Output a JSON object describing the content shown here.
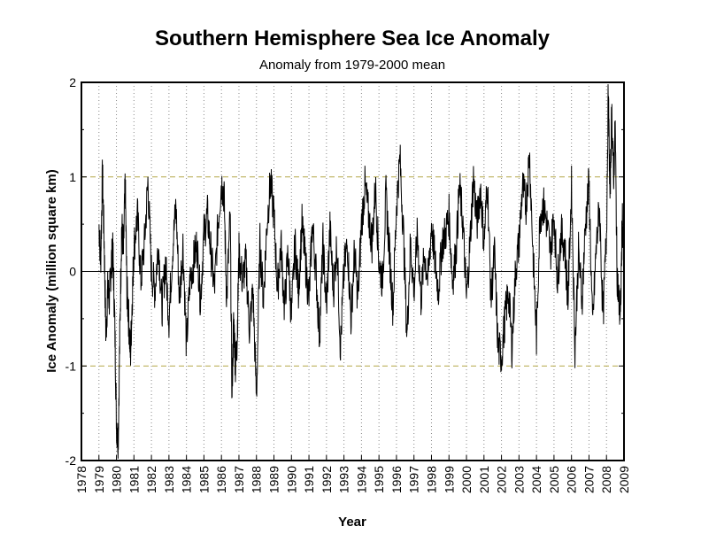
{
  "chart_data": {
    "type": "line",
    "title": "Southern Hemisphere Sea Ice Anomaly",
    "subtitle": "Anomaly from 1979-2000 mean",
    "xlabel": "Year",
    "ylabel": "Ice Anomaly (million square km)",
    "xlim": [
      1978,
      2009
    ],
    "ylim": [
      -2,
      2
    ],
    "x_ticks": [
      "1978",
      "1979",
      "1980",
      "1981",
      "1982",
      "1983",
      "1984",
      "1985",
      "1986",
      "1987",
      "1988",
      "1989",
      "1990",
      "1991",
      "1992",
      "1993",
      "1994",
      "1995",
      "1996",
      "1997",
      "1998",
      "1999",
      "2000",
      "2001",
      "2002",
      "2003",
      "2004",
      "2005",
      "2006",
      "2007",
      "2008",
      "2009"
    ],
    "y_ticks": [
      "-2",
      "-1",
      "0",
      "1",
      "2"
    ],
    "y_tick_values": [
      -2,
      -1,
      0,
      1,
      2
    ],
    "grid": {
      "vertical": "dotted",
      "horizontal_reference_lines": [
        -1,
        1
      ],
      "zero_line": true
    },
    "series": [
      {
        "color": "#000000",
        "x": [
          1979.0,
          1979.1,
          1979.2,
          1979.3,
          1979.4,
          1979.5,
          1979.6,
          1979.7,
          1979.8,
          1979.9,
          1980.0,
          1980.1,
          1980.2,
          1980.3,
          1980.4,
          1980.5,
          1980.6,
          1980.7,
          1980.8,
          1980.9,
          1981.0,
          1981.2,
          1981.4,
          1981.6,
          1981.8,
          1982.0,
          1982.2,
          1982.4,
          1982.6,
          1982.8,
          1983.0,
          1983.2,
          1983.4,
          1983.6,
          1983.8,
          1984.0,
          1984.2,
          1984.4,
          1984.6,
          1984.8,
          1985.0,
          1985.2,
          1985.4,
          1985.6,
          1985.8,
          1986.0,
          1986.15,
          1986.3,
          1986.5,
          1986.6,
          1986.7,
          1986.8,
          1986.9,
          1987.0,
          1987.2,
          1987.4,
          1987.6,
          1987.8,
          1988.0,
          1988.2,
          1988.4,
          1988.6,
          1988.8,
          1989.0,
          1989.2,
          1989.4,
          1989.6,
          1989.8,
          1990.0,
          1990.2,
          1990.4,
          1990.6,
          1990.8,
          1991.0,
          1991.2,
          1991.4,
          1991.6,
          1991.8,
          1992.0,
          1992.2,
          1992.4,
          1992.6,
          1992.8,
          1993.0,
          1993.2,
          1993.4,
          1993.6,
          1993.8,
          1994.0,
          1994.2,
          1994.4,
          1994.6,
          1994.8,
          1995.0,
          1995.2,
          1995.4,
          1995.6,
          1995.8,
          1996.0,
          1996.2,
          1996.4,
          1996.6,
          1996.8,
          1997.0,
          1997.2,
          1997.4,
          1997.6,
          1997.8,
          1998.0,
          1998.2,
          1998.4,
          1998.6,
          1998.8,
          1999.0,
          1999.2,
          1999.4,
          1999.6,
          1999.8,
          2000.0,
          2000.2,
          2000.4,
          2000.6,
          2000.8,
          2001.0,
          2001.2,
          2001.4,
          2001.6,
          2001.8,
          2002.0,
          2002.2,
          2002.4,
          2002.6,
          2002.8,
          2003.0,
          2003.2,
          2003.4,
          2003.6,
          2003.8,
          2004.0,
          2004.2,
          2004.4,
          2004.6,
          2004.8,
          2005.0,
          2005.2,
          2005.4,
          2005.6,
          2005.8,
          2006.0,
          2006.2,
          2006.4,
          2006.6,
          2006.8,
          2007.0,
          2007.2,
          2007.4,
          2007.6,
          2007.8,
          2008.0,
          2008.1,
          2008.2,
          2008.3,
          2008.4,
          2008.5,
          2008.6,
          2008.7,
          2008.8,
          2008.9,
          2009.0
        ],
        "y": [
          0.5,
          0.1,
          1.05,
          0.3,
          -0.7,
          -0.2,
          -0.3,
          0.1,
          0.2,
          -0.5,
          -1.6,
          -1.8,
          -0.6,
          0.5,
          0.2,
          0.95,
          -0.2,
          -0.5,
          -0.9,
          -0.3,
          0.25,
          0.6,
          -0.1,
          0.3,
          0.95,
          0.0,
          -0.2,
          0.3,
          -0.4,
          0.1,
          -0.5,
          0.2,
          0.7,
          -0.3,
          0.3,
          -0.8,
          -0.1,
          0.1,
          0.3,
          -0.3,
          0.4,
          0.6,
          0.2,
          -0.2,
          0.5,
          0.95,
          0.8,
          -0.3,
          0.6,
          -1.3,
          -0.5,
          -1.0,
          -0.7,
          0.2,
          -0.1,
          0.1,
          -0.6,
          -0.2,
          -1.35,
          0.3,
          -0.3,
          0.5,
          0.95,
          0.6,
          -0.2,
          0.3,
          -0.4,
          0.2,
          -0.5,
          0.3,
          -0.2,
          0.5,
          0.1,
          -0.3,
          0.5,
          0.0,
          -0.7,
          0.3,
          -0.4,
          0.45,
          -0.2,
          0.3,
          -0.8,
          0.0,
          0.3,
          -0.5,
          0.2,
          -0.3,
          0.5,
          0.9,
          0.6,
          0.3,
          0.9,
          0.1,
          -0.1,
          0.8,
          0.2,
          -0.4,
          0.7,
          1.2,
          0.4,
          -0.7,
          0.3,
          -0.2,
          0.4,
          -0.3,
          0.2,
          -0.1,
          0.5,
          0.1,
          -0.2,
          0.3,
          0.4,
          0.6,
          -0.1,
          0.2,
          0.9,
          0.5,
          -0.3,
          0.3,
          1.0,
          0.5,
          0.9,
          0.3,
          0.95,
          -0.3,
          0.2,
          -0.8,
          -0.9,
          -0.5,
          -0.2,
          -0.8,
          0.0,
          0.3,
          0.9,
          0.7,
          1.25,
          0.2,
          -0.7,
          0.6,
          0.7,
          0.5,
          0.2,
          0.6,
          -0.1,
          0.4,
          0.3,
          -0.3,
          0.9,
          -0.8,
          0.2,
          -0.3,
          0.5,
          0.95,
          -0.6,
          0.2,
          0.7,
          -0.5,
          0.4,
          1.9,
          0.8,
          1.7,
          1.0,
          1.5,
          0.0,
          -0.3,
          -0.5,
          0.6,
          0.0
        ]
      }
    ]
  }
}
